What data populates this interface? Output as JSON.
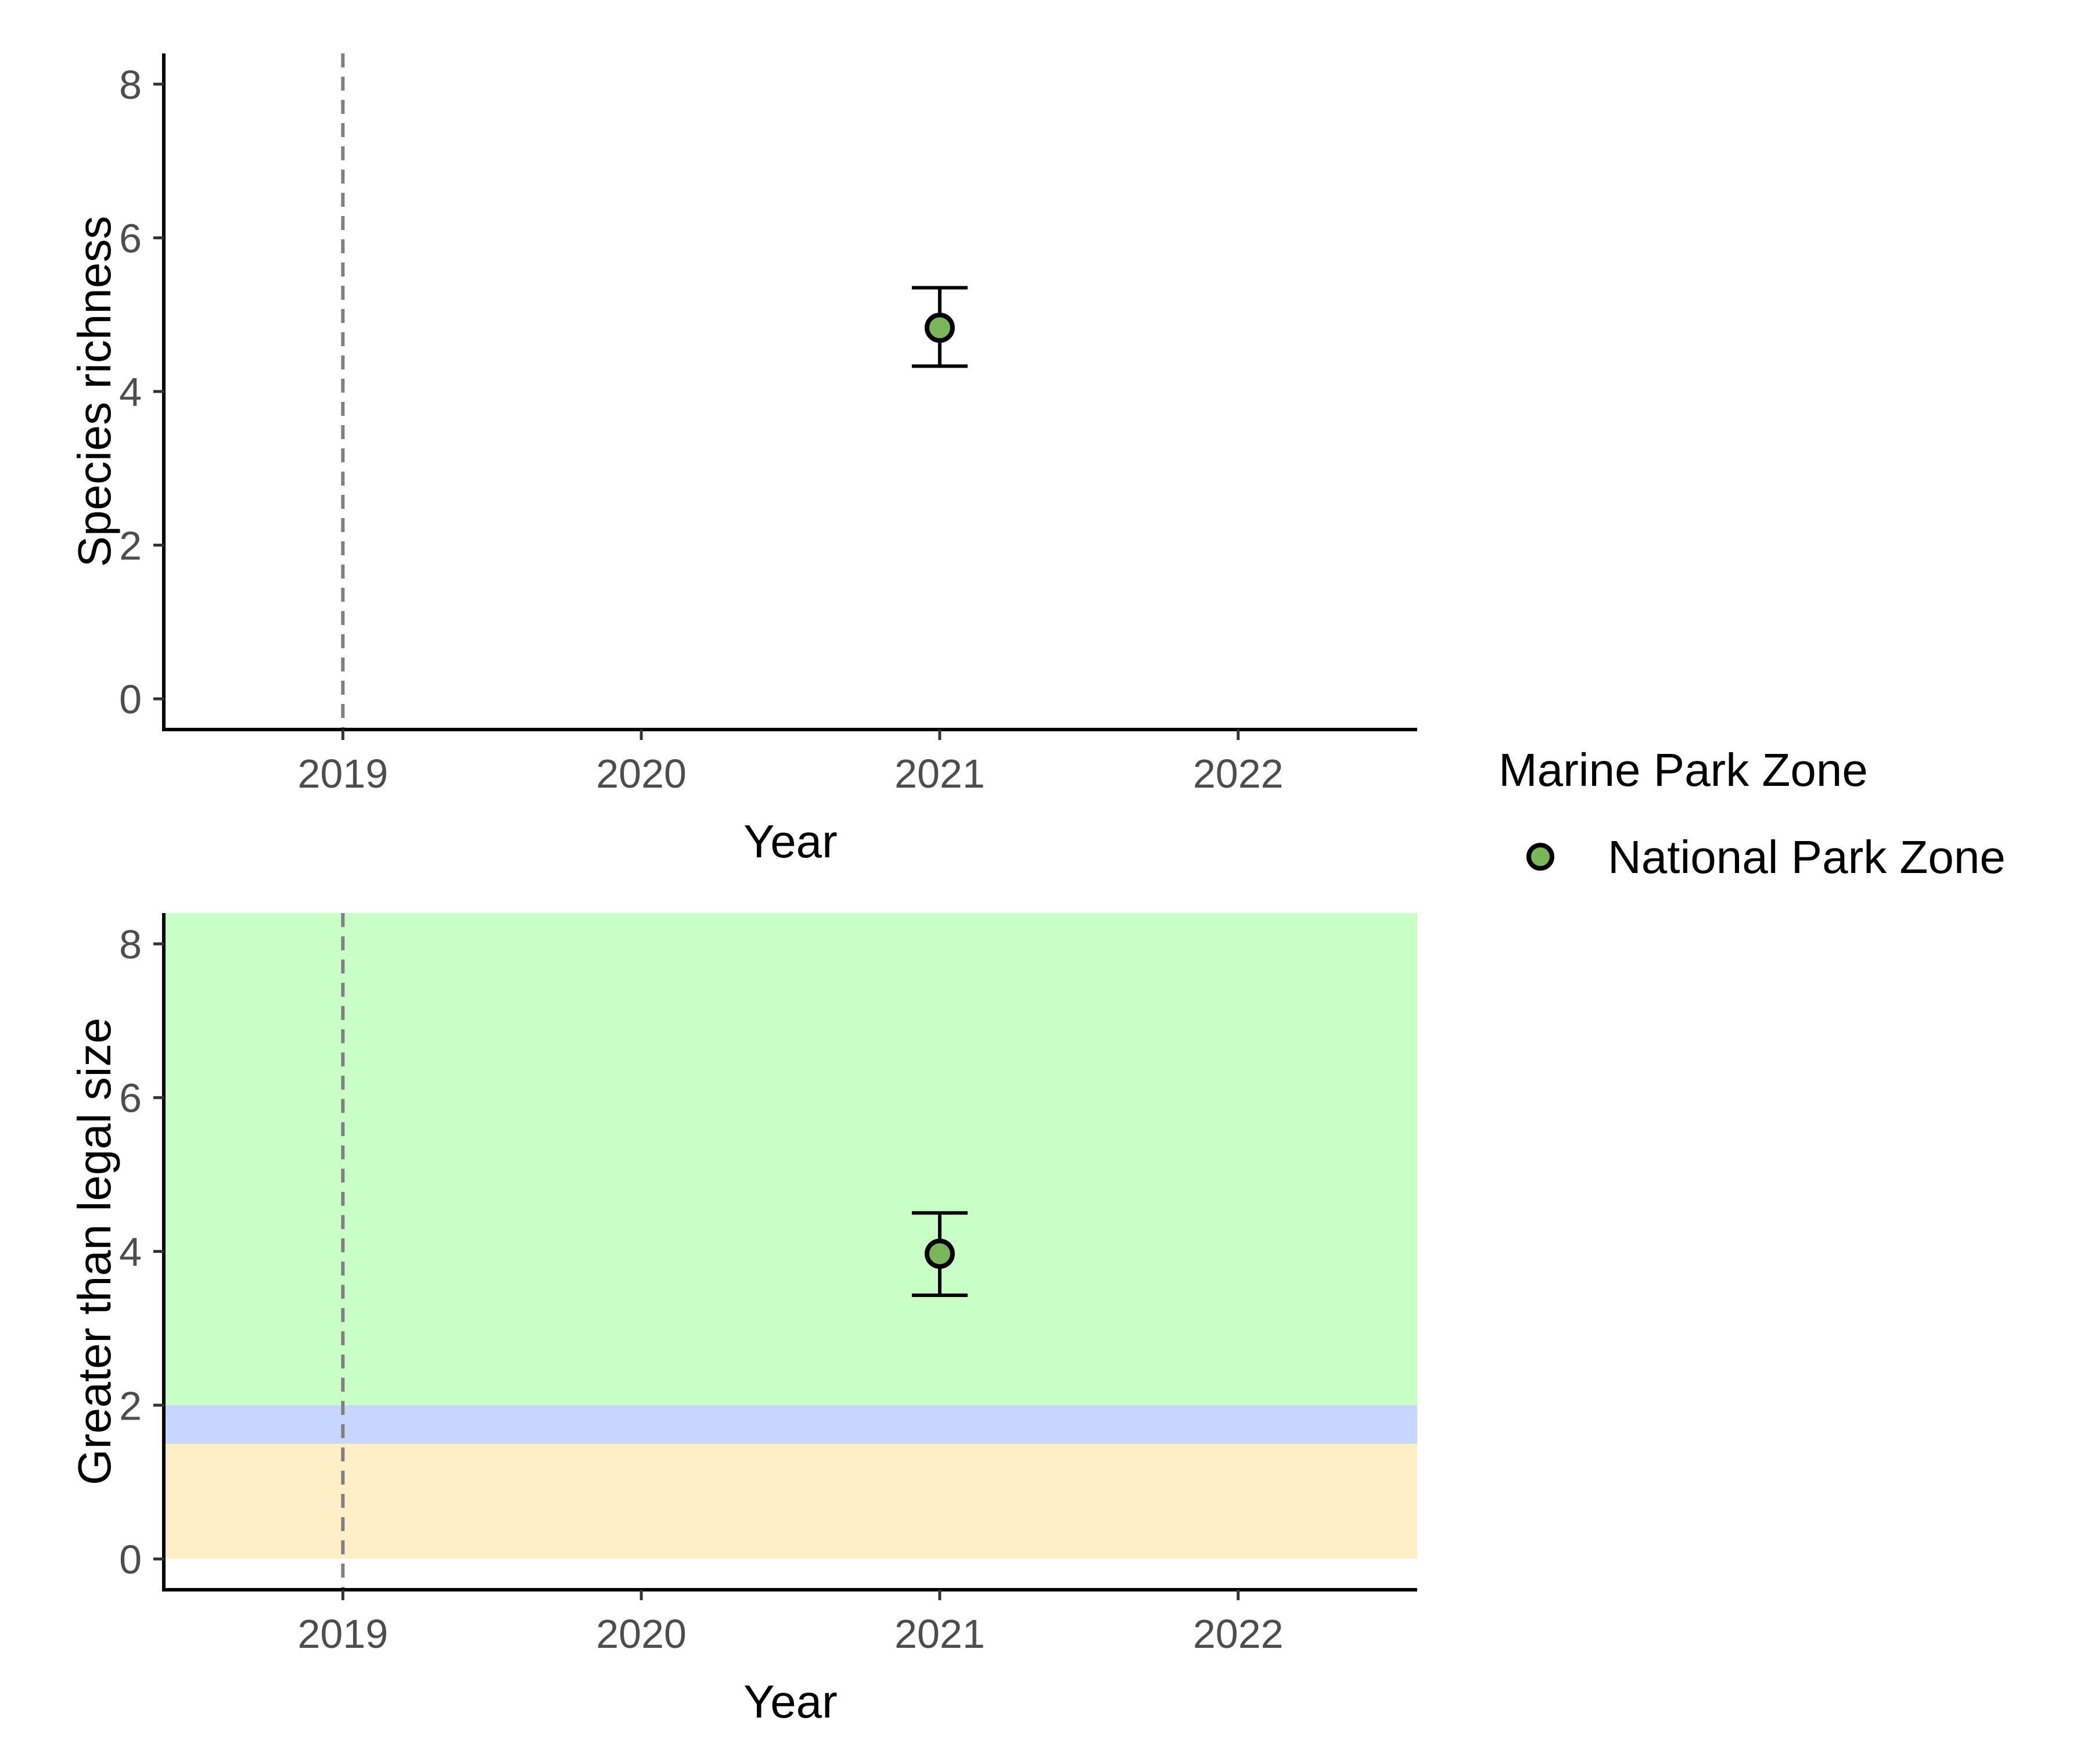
{
  "chart_data": [
    {
      "type": "scatter",
      "xlabel": "Year",
      "ylabel": "Species richness",
      "x_ticks": [
        "2019",
        "2020",
        "2021",
        "2022"
      ],
      "y_ticks": [
        "0",
        "2",
        "4",
        "6",
        "8"
      ],
      "xlim": [
        2018.4,
        2022.6
      ],
      "ylim": [
        -0.4,
        8.4
      ],
      "reference_line_x": 2019,
      "grid": false,
      "series": [
        {
          "name": "National Park Zone",
          "color": "#7ab55c",
          "points": [
            {
              "x": 2021,
              "y": 4.83,
              "ymin": 4.33,
              "ymax": 5.35
            }
          ]
        }
      ]
    },
    {
      "type": "scatter",
      "xlabel": "Year",
      "ylabel": "Greater than legal size",
      "x_ticks": [
        "2019",
        "2020",
        "2021",
        "2022"
      ],
      "y_ticks": [
        "0",
        "2",
        "4",
        "6",
        "8"
      ],
      "xlim": [
        2018.4,
        2022.6
      ],
      "ylim": [
        -0.4,
        8.4
      ],
      "reference_line_x": 2019,
      "grid": false,
      "bands": [
        {
          "ymin": 0,
          "ymax": 1.5,
          "color": "#ffeec8"
        },
        {
          "ymin": 1.5,
          "ymax": 2,
          "color": "#c6d6ff"
        },
        {
          "ymin": 2,
          "ymax": 8.4,
          "color": "#c9ffc6"
        }
      ],
      "series": [
        {
          "name": "National Park Zone",
          "color": "#7ab55c",
          "points": [
            {
              "x": 2021,
              "y": 3.97,
              "ymin": 3.43,
              "ymax": 4.5
            }
          ]
        }
      ]
    }
  ],
  "legend": {
    "title": "Marine Park Zone",
    "items": [
      {
        "label": "National Park Zone",
        "color": "#7ab55c"
      }
    ]
  }
}
